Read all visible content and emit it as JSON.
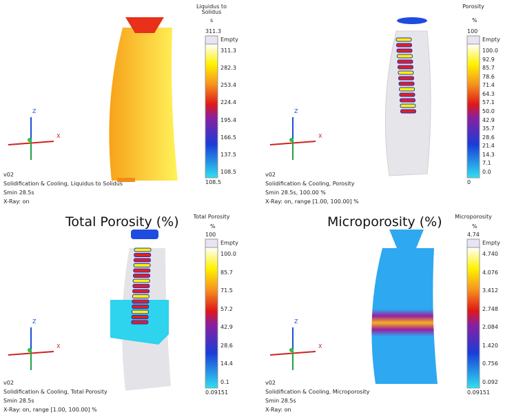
{
  "panels": [
    {
      "heading": null,
      "legend_title": "Liquidus to Solidus",
      "unit": "s",
      "top_label": "311.3",
      "empty": "Empty",
      "scale": [
        "311.3",
        "282.3",
        "253.4",
        "224.4",
        "195.4",
        "166.5",
        "137.5",
        "108.5"
      ],
      "bottom_label": "108.5",
      "axis_labels": [
        "Z",
        "X"
      ],
      "info": [
        "v02",
        "Solidification & Cooling, Liquidus to Solidus",
        "Smin 28.5s",
        "X-Ray: on"
      ]
    },
    {
      "heading": null,
      "legend_title": "Porosity",
      "unit": "%",
      "top_label": "100",
      "empty": "Empty",
      "scale": [
        "100.0",
        "92.9",
        "85.7",
        "78.6",
        "71.4",
        "64.3",
        "57.1",
        "50.0",
        "42.9",
        "35.7",
        "28.6",
        "21.4",
        "14.3",
        "7.1",
        "0.0"
      ],
      "bottom_label": "0",
      "axis_labels": [
        "Z",
        "X"
      ],
      "info": [
        "v02",
        "Solidification & Cooling, Porosity",
        "Smin 28.5s, 100.00 %",
        "X-Ray: on, range [1.00, 100.00] %"
      ]
    },
    {
      "heading": "Total Porosity (%)",
      "legend_title": "Total Porosity",
      "unit": "%",
      "top_label": "100",
      "empty": "Empty",
      "scale": [
        "100.0",
        "85.7",
        "71.5",
        "57.2",
        "42.9",
        "28.6",
        "14.4",
        "0.1"
      ],
      "bottom_label": "0.09151",
      "axis_labels": [
        "Z",
        "X"
      ],
      "info": [
        "v02",
        "Solidification & Cooling, Total Porosity",
        "Smin 28.5s",
        "X-Ray: on, range [1.00, 100.00] %"
      ]
    },
    {
      "heading": "Microporosity (%)",
      "legend_title": "Microporosity",
      "unit": "%",
      "top_label": "4.74",
      "empty": "Empty",
      "scale": [
        "4.740",
        "4.076",
        "3.412",
        "2.748",
        "2.084",
        "1.420",
        "0.756",
        "0.092"
      ],
      "bottom_label": "0.09151",
      "axis_labels": [
        "Z",
        "X"
      ],
      "info": [
        "v02",
        "Solidification & Cooling, Microporosity",
        "Smin 28.5s",
        "X-Ray: on"
      ]
    }
  ]
}
